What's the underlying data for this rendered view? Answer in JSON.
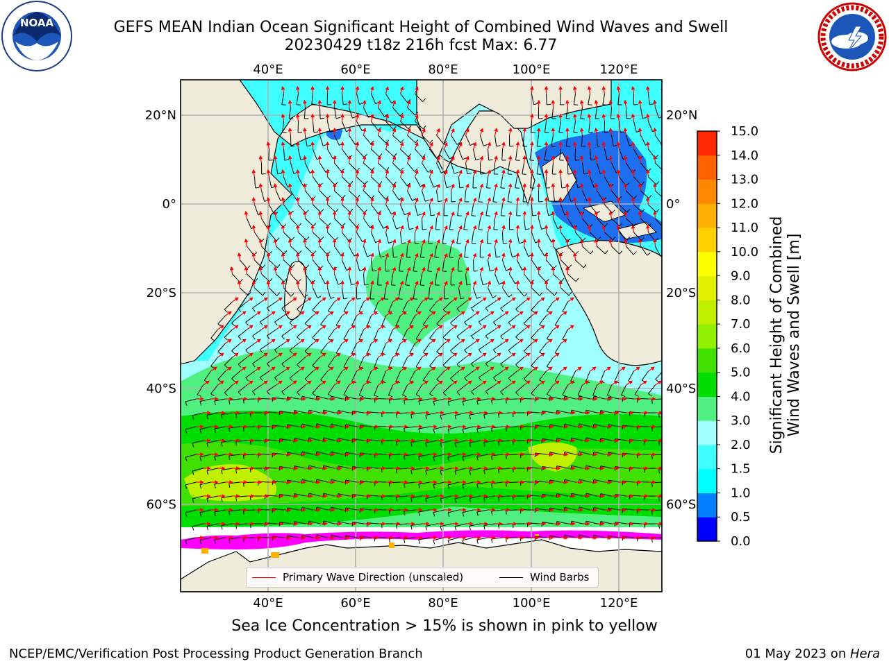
{
  "title": {
    "line1": "GEFS MEAN Indian Ocean Significant Height of Combined Wind Waves and Swell",
    "line2": "20230429 t18z 216h fcst   Max: 6.77"
  },
  "map": {
    "lon_labels": [
      "40°E",
      "60°E",
      "80°E",
      "100°E",
      "120°E"
    ],
    "lat_labels": [
      "20°N",
      "0°",
      "20°S",
      "40°S",
      "60°S"
    ],
    "colors": {
      "land": "#efecdc",
      "coast": "#000000",
      "grid": "#b0b0b0",
      "wave_arrow": "#ff0000",
      "wind_barb": "#000000",
      "sea_ice": "#ff00ff",
      "ice_free_margin": "#ffffff"
    }
  },
  "legend": {
    "wave_label": "Primary Wave Direction (unscaled)",
    "wind_label": "Wind Barbs"
  },
  "colorbar": {
    "label": "Significant Height of Combined Wind Waves and Swell [m]",
    "label_line1": "Significant Height of Combined",
    "label_line2": "Wind Waves and Swell [m]",
    "ticks": [
      "0.0",
      "0.5",
      "1.0",
      "1.5",
      "2.0",
      "3.0",
      "4.0",
      "5.0",
      "6.0",
      "7.0",
      "8.0",
      "9.0",
      "10.0",
      "11.0",
      "12.0",
      "13.0",
      "14.0",
      "15.0"
    ],
    "colors": [
      "#0000ff",
      "#0080ff",
      "#00ffff",
      "#40ffff",
      "#a0ffff",
      "#50f080",
      "#00dd00",
      "#40e000",
      "#90f000",
      "#c0f000",
      "#e0f000",
      "#ffff00",
      "#ffd000",
      "#ffb000",
      "#ff8800",
      "#ff6000",
      "#ff2800"
    ]
  },
  "caption": "Sea Ice Concentration > 15% is shown in pink to yellow",
  "footer": {
    "left": "NCEP/EMC/Verification Post Processing Product Generation Branch",
    "date": "01 May 2023 on ",
    "host": "Hera"
  },
  "logos": {
    "noaa_icon": "noaa-logo",
    "noaa_text": "NOAA",
    "nws_icon": "nws-logo"
  }
}
